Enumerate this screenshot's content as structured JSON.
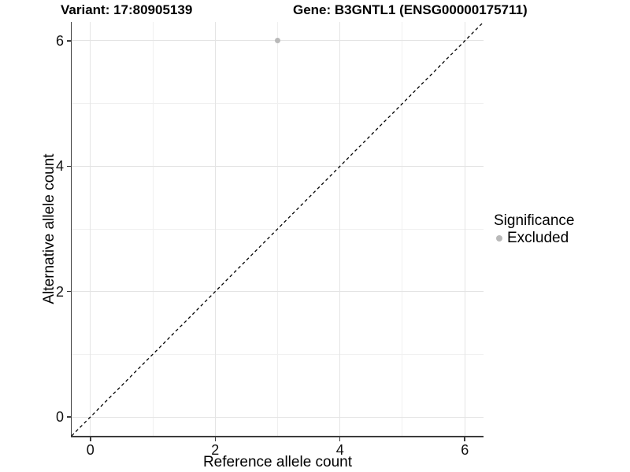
{
  "titles": {
    "left": "Variant: 17:80905139",
    "right": "Gene: B3GNTL1 (ENSG00000175711)"
  },
  "legend": {
    "title": "Significance",
    "items": [
      {
        "label": "Excluded",
        "color": "#b9b9b9"
      }
    ]
  },
  "colors": {
    "background": "#ffffff",
    "major_grid": "#e4e4e4",
    "minor_grid": "#f0f0f0",
    "axis_line": "#3c3c3c",
    "point": "#b9b9b9",
    "reference_line": "#000000",
    "text": "#000000"
  },
  "chart_data": {
    "type": "scatter",
    "title_left": "Variant: 17:80905139",
    "title_right": "Gene: B3GNTL1 (ENSG00000175711)",
    "xlabel": "Reference allele count",
    "ylabel": "Alternative allele count",
    "xlim": [
      -0.3,
      6.3
    ],
    "ylim": [
      -0.3,
      6.3
    ],
    "x_major_ticks": [
      0,
      2,
      4,
      6
    ],
    "y_major_ticks": [
      0,
      2,
      4,
      6
    ],
    "x_minor_gridlines": [
      1,
      3,
      5
    ],
    "y_minor_gridlines": [
      1,
      3,
      5
    ],
    "grid": true,
    "legend_position": "right",
    "series": [
      {
        "name": "Excluded",
        "color": "#b9b9b9",
        "points": [
          {
            "x": 3,
            "y": 6
          }
        ]
      }
    ],
    "reference_line": {
      "type": "abline",
      "intercept": 0,
      "slope": 1,
      "style": "dashed",
      "color": "#000000"
    }
  }
}
